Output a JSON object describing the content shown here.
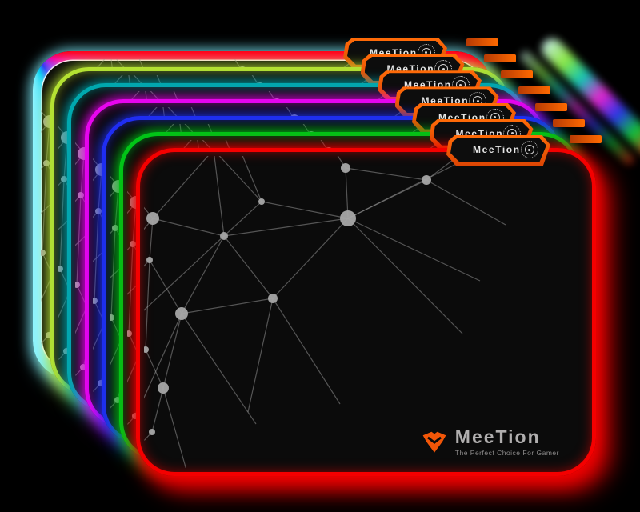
{
  "brand": {
    "tab_label": "MeeTion",
    "logo_text": "MeeTion",
    "tagline": "The Perfect Choice For Gamer"
  },
  "colors": {
    "background": "#000000",
    "pad_surface": "#0b0b0b",
    "orange_trim": "#f25608",
    "pattern_gray": "#9e9e9e",
    "logo_text_gray": "#b0aeae",
    "tagline_gray": "#8c8a8a",
    "rainbow_glow": "#7deefc"
  },
  "icons": {
    "tab_logo": "meetion-shield-icon",
    "tab_button": "led-touch-button-icon",
    "corner_logo": "meetion-shield-icon"
  },
  "pads": [
    {
      "name": "rainbow",
      "type": "rainbow",
      "color": "#7deefc",
      "rainbow_stops": [
        "#ff0016",
        "#f2009e",
        "#9727e8",
        "#2a38f5",
        "#00d0f0",
        "#8ef4ff"
      ]
    },
    {
      "name": "chartreuse",
      "type": "solid",
      "color": "#b4e132"
    },
    {
      "name": "teal",
      "type": "solid",
      "color": "#00a8ae"
    },
    {
      "name": "magenta",
      "type": "solid",
      "color": "#e705ee"
    },
    {
      "name": "blue",
      "type": "solid",
      "color": "#1f2df2"
    },
    {
      "name": "green",
      "type": "solid",
      "color": "#01c517"
    },
    {
      "name": "red",
      "type": "solid",
      "color": "#f40000"
    }
  ],
  "pattern": {
    "nodes": {
      "A": [
        21,
        88,
        8
      ],
      "B": [
        110,
        110,
        5
      ],
      "C": [
        17,
        140,
        4
      ],
      "D": [
        57,
        207,
        8
      ],
      "E": [
        171,
        188,
        6
      ],
      "F": [
        157,
        67,
        4
      ],
      "G": [
        265,
        88,
        10
      ],
      "H": [
        262,
        25,
        6
      ],
      "I": [
        363,
        40,
        6
      ],
      "J": [
        97,
        2,
        5
      ],
      "L": [
        34,
        300,
        7
      ],
      "M": [
        12,
        252,
        4
      ],
      "N": [
        20,
        355,
        4
      ]
    },
    "edges": [
      [
        "J",
        "A"
      ],
      [
        "J",
        "B"
      ],
      [
        "J",
        "F"
      ],
      [
        "A",
        "B"
      ],
      [
        "A",
        "C"
      ],
      [
        "B",
        "E"
      ],
      [
        "B",
        "D"
      ],
      [
        "B",
        "G"
      ],
      [
        "C",
        "D"
      ],
      [
        "D",
        "E"
      ],
      [
        "E",
        "G"
      ],
      [
        "F",
        "B"
      ],
      [
        "F",
        "G"
      ],
      [
        "G",
        "H"
      ],
      [
        "G",
        "I"
      ],
      [
        "H",
        "I"
      ],
      [
        "L",
        "M"
      ],
      [
        "L",
        "N"
      ],
      [
        "L",
        "D"
      ],
      [
        "M",
        "C"
      ]
    ],
    "rays": [
      [
        "A",
        -28,
        28
      ],
      [
        "A",
        -30,
        150
      ],
      [
        "C",
        -30,
        190
      ],
      [
        "D",
        2,
        330
      ],
      [
        "D",
        150,
        345
      ],
      [
        "E",
        140,
        330
      ],
      [
        "E",
        255,
        320
      ],
      [
        "G",
        408,
        232
      ],
      [
        "G",
        470,
        -15
      ],
      [
        "G",
        430,
        166
      ],
      [
        "H",
        228,
        -28
      ],
      [
        "I",
        432,
        -12
      ],
      [
        "I",
        462,
        96
      ],
      [
        "J",
        40,
        -28
      ],
      [
        "J",
        150,
        -25
      ],
      [
        "F",
        120,
        -22
      ],
      [
        "B",
        -28,
        238
      ],
      [
        "M",
        -22,
        210
      ],
      [
        "N",
        -18,
        396
      ],
      [
        "L",
        64,
        406
      ]
    ]
  }
}
